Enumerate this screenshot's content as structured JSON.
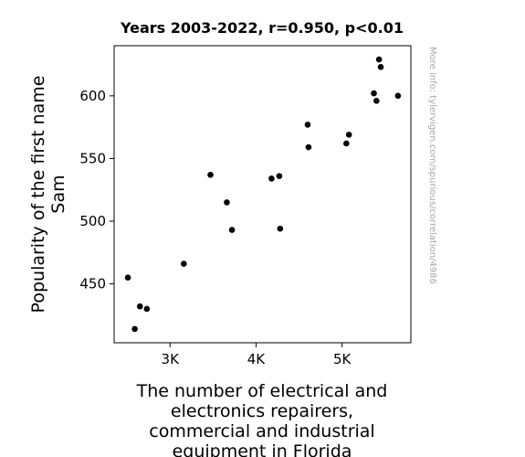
{
  "chart_data": {
    "type": "scatter",
    "title": "Years 2003-2022, r=0.950, p<0.01",
    "xlabel_lines": [
      "The number of electrical and",
      "electronics repairers,",
      "commercial and industrial",
      "equipment in Florida"
    ],
    "ylabel_lines": [
      "Popularity of the first name",
      "Sam"
    ],
    "side_note": "More info: tylervigen.com/spurious/correlation/4986",
    "xlim": [
      2350,
      5800
    ],
    "ylim": [
      403,
      640
    ],
    "xticks": [
      {
        "value": 3000,
        "label": "3K"
      },
      {
        "value": 4000,
        "label": "4K"
      },
      {
        "value": 5000,
        "label": "5K"
      }
    ],
    "yticks": [
      {
        "value": 450,
        "label": "450"
      },
      {
        "value": 500,
        "label": "500"
      },
      {
        "value": 550,
        "label": "550"
      },
      {
        "value": 600,
        "label": "600"
      }
    ],
    "points": [
      {
        "x": 2510,
        "y": 455
      },
      {
        "x": 2590,
        "y": 414
      },
      {
        "x": 2650,
        "y": 432
      },
      {
        "x": 2730,
        "y": 430
      },
      {
        "x": 3160,
        "y": 466
      },
      {
        "x": 3470,
        "y": 537
      },
      {
        "x": 3660,
        "y": 515
      },
      {
        "x": 3720,
        "y": 493
      },
      {
        "x": 4180,
        "y": 534
      },
      {
        "x": 4270,
        "y": 536
      },
      {
        "x": 4280,
        "y": 494
      },
      {
        "x": 4600,
        "y": 577
      },
      {
        "x": 4610,
        "y": 559
      },
      {
        "x": 5050,
        "y": 562
      },
      {
        "x": 5080,
        "y": 569
      },
      {
        "x": 5370,
        "y": 602
      },
      {
        "x": 5400,
        "y": 596
      },
      {
        "x": 5430,
        "y": 629
      },
      {
        "x": 5450,
        "y": 623
      },
      {
        "x": 5650,
        "y": 600
      }
    ],
    "marker_color": "#000000"
  }
}
